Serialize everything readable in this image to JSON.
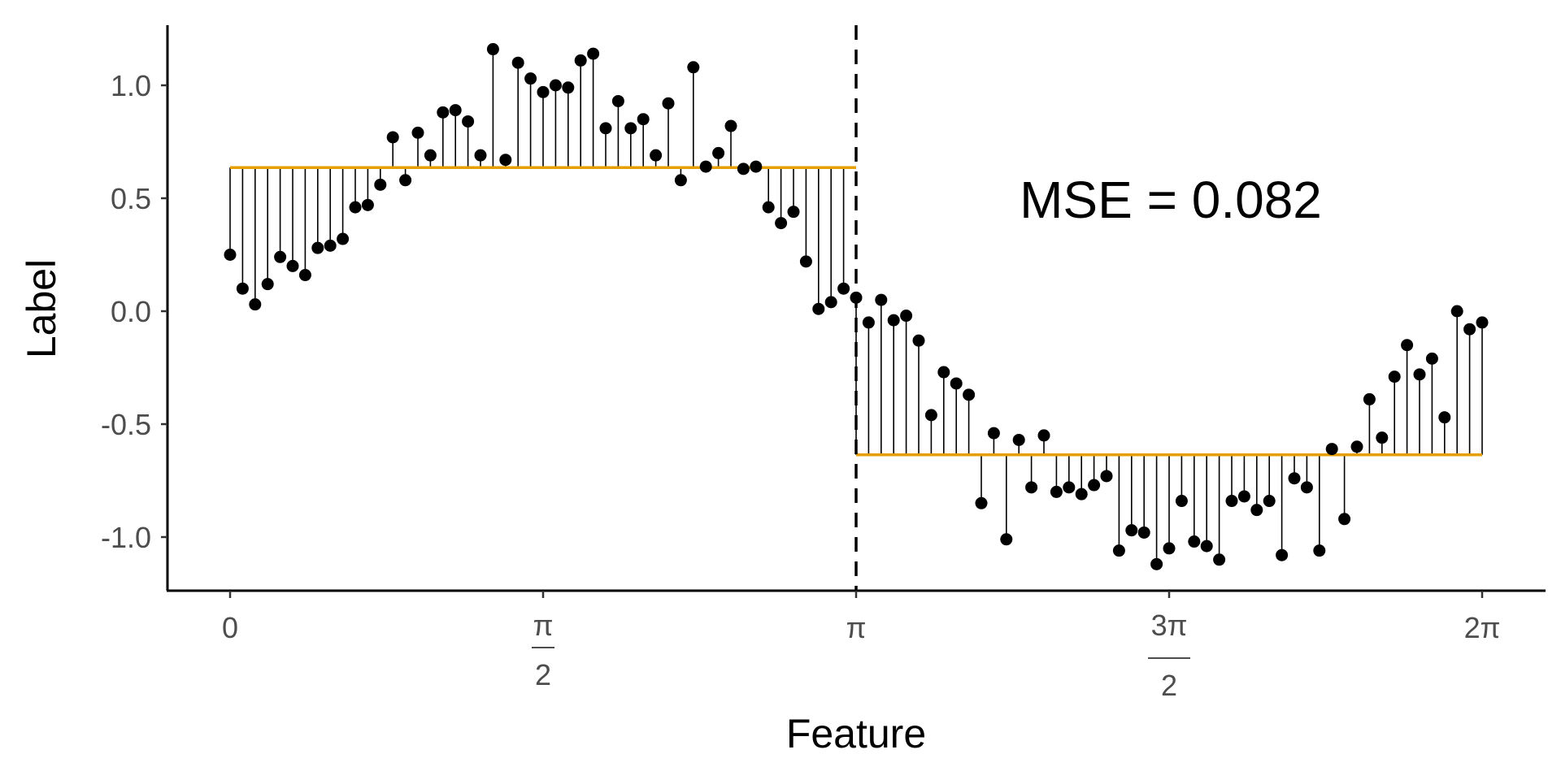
{
  "chart_data": {
    "type": "scatter",
    "title": "",
    "xlabel": "Feature",
    "ylabel": "Label",
    "xlim": [
      -0.32,
      6.62
    ],
    "ylim": [
      -1.23,
      1.27
    ],
    "x_ticks": [
      {
        "value": 0,
        "num": "0",
        "den": ""
      },
      {
        "value": 1.5708,
        "num": "π",
        "den": "2"
      },
      {
        "value": 3.1416,
        "num": "π",
        "den": ""
      },
      {
        "value": 4.7124,
        "num": "3π",
        "den": "2"
      },
      {
        "value": 6.2832,
        "num": "2π",
        "den": ""
      }
    ],
    "y_ticks": [
      {
        "value": 1.0,
        "label": "1.0"
      },
      {
        "value": 0.5,
        "label": "0.5"
      },
      {
        "value": 0.0,
        "label": "0.0"
      },
      {
        "value": -0.5,
        "label": "-0.5"
      },
      {
        "value": -1.0,
        "label": "-1.0"
      }
    ],
    "x_range": [
      0,
      6.2832
    ],
    "n_points": 101,
    "y": [
      0.25,
      0.1,
      0.03,
      0.12,
      0.24,
      0.2,
      0.16,
      0.28,
      0.29,
      0.32,
      0.46,
      0.47,
      0.56,
      0.77,
      0.58,
      0.79,
      0.69,
      0.88,
      0.89,
      0.84,
      0.69,
      1.16,
      0.67,
      1.1,
      1.03,
      0.97,
      1.0,
      0.99,
      1.11,
      1.14,
      0.81,
      0.93,
      0.81,
      0.85,
      0.69,
      0.92,
      0.58,
      1.08,
      0.64,
      0.7,
      0.82,
      0.63,
      0.64,
      0.46,
      0.39,
      0.44,
      0.22,
      0.01,
      0.04,
      0.1,
      0.06,
      -0.05,
      0.05,
      -0.04,
      -0.02,
      -0.13,
      -0.46,
      -0.27,
      -0.32,
      -0.37,
      -0.85,
      -0.54,
      -1.01,
      -0.57,
      -0.78,
      -0.55,
      -0.8,
      -0.78,
      -0.81,
      -0.77,
      -0.73,
      -1.06,
      -0.97,
      -0.98,
      -1.12,
      -1.05,
      -0.84,
      -1.02,
      -1.04,
      -1.1,
      -0.84,
      -0.82,
      -0.88,
      -0.84,
      -1.08,
      -0.74,
      -0.78,
      -1.06,
      -0.61,
      -0.92,
      -0.6,
      -0.39,
      -0.56,
      -0.29,
      -0.15,
      -0.28,
      -0.21,
      -0.47,
      0.0,
      -0.08,
      -0.05
    ],
    "fit": [
      {
        "x_start": 0,
        "x_end": 3.1416,
        "y": 0.636
      },
      {
        "x_start": 3.1416,
        "x_end": 6.2832,
        "y": -0.636
      }
    ],
    "split_x": 3.1416,
    "annotation": "MSE = 0.082",
    "colors": {
      "points": "#000000",
      "fit": "#E69F00",
      "split": "#000000"
    },
    "grid": false
  }
}
